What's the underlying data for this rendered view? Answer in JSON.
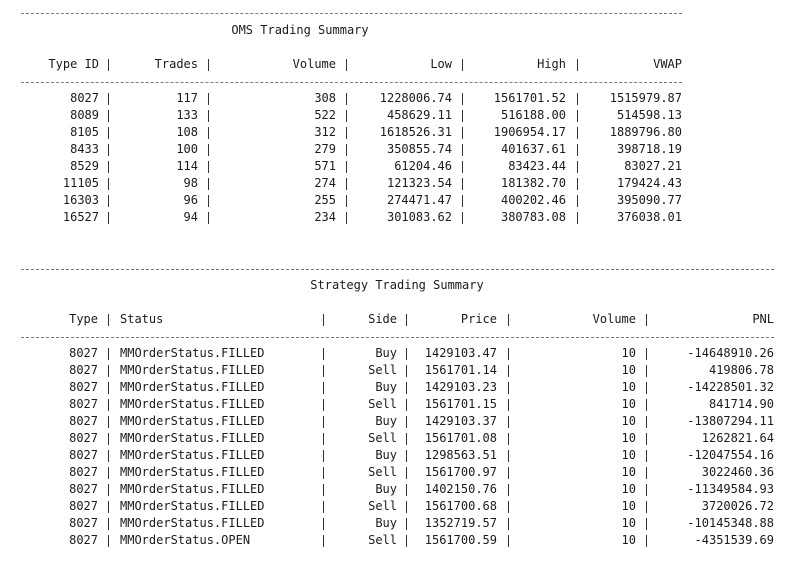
{
  "oms": {
    "title": "OMS Trading Summary",
    "headers": [
      "Type ID",
      "Trades",
      "Volume",
      "Low",
      "High",
      "VWAP"
    ],
    "rows": [
      [
        "8027",
        "117",
        "308",
        "1228006.74",
        "1561701.52",
        "1515979.87"
      ],
      [
        "8089",
        "133",
        "522",
        "458629.11",
        "516188.00",
        "514598.13"
      ],
      [
        "8105",
        "108",
        "312",
        "1618526.31",
        "1906954.17",
        "1889796.80"
      ],
      [
        "8433",
        "100",
        "279",
        "350855.74",
        "401637.61",
        "398718.19"
      ],
      [
        "8529",
        "114",
        "571",
        "61204.46",
        "83423.44",
        "83027.21"
      ],
      [
        "11105",
        "98",
        "274",
        "121323.54",
        "181382.70",
        "179424.43"
      ],
      [
        "16303",
        "96",
        "255",
        "274471.47",
        "400202.46",
        "395090.77"
      ],
      [
        "16527",
        "94",
        "234",
        "301083.62",
        "380783.08",
        "376038.01"
      ]
    ]
  },
  "strategy": {
    "title": "Strategy Trading Summary",
    "headers": [
      "Type",
      "Status",
      "Side",
      "Price",
      "Volume",
      "PNL"
    ],
    "rows": [
      [
        "8027",
        "MMOrderStatus.FILLED",
        "Buy",
        "1429103.47",
        "10",
        "-14648910.26"
      ],
      [
        "8027",
        "MMOrderStatus.FILLED",
        "Sell",
        "1561701.14",
        "10",
        "419806.78"
      ],
      [
        "8027",
        "MMOrderStatus.FILLED",
        "Buy",
        "1429103.23",
        "10",
        "-14228501.32"
      ],
      [
        "8027",
        "MMOrderStatus.FILLED",
        "Sell",
        "1561701.15",
        "10",
        "841714.90"
      ],
      [
        "8027",
        "MMOrderStatus.FILLED",
        "Buy",
        "1429103.37",
        "10",
        "-13807294.11"
      ],
      [
        "8027",
        "MMOrderStatus.FILLED",
        "Sell",
        "1561701.08",
        "10",
        "1262821.64"
      ],
      [
        "8027",
        "MMOrderStatus.FILLED",
        "Buy",
        "1298563.51",
        "10",
        "-12047554.16"
      ],
      [
        "8027",
        "MMOrderStatus.FILLED",
        "Sell",
        "1561700.97",
        "10",
        "3022460.36"
      ],
      [
        "8027",
        "MMOrderStatus.FILLED",
        "Buy",
        "1402150.76",
        "10",
        "-11349584.93"
      ],
      [
        "8027",
        "MMOrderStatus.FILLED",
        "Sell",
        "1561700.68",
        "10",
        "3720026.72"
      ],
      [
        "8027",
        "MMOrderStatus.FILLED",
        "Buy",
        "1352719.57",
        "10",
        "-10145348.88"
      ],
      [
        "8027",
        "MMOrderStatus.OPEN",
        "Sell",
        "1561700.59",
        "10",
        "-4351539.69"
      ]
    ]
  }
}
